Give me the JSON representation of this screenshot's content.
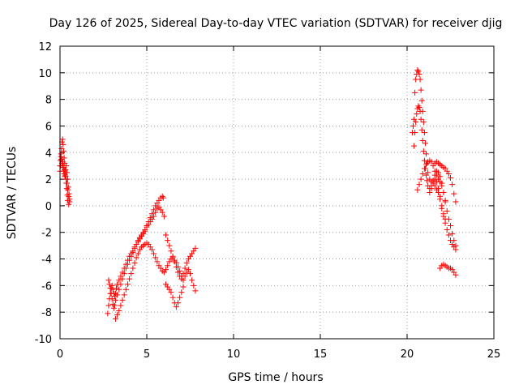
{
  "chart_data": {
    "type": "scatter",
    "title": "Day 126 of 2025, Sidereal Day-to-day VTEC variation (SDTVAR) for receiver djig",
    "xlabel": "GPS time / hours",
    "ylabel": "SDTVAR / TECUs",
    "xlim": [
      0,
      25
    ],
    "ylim": [
      -10,
      12
    ],
    "xticks": [
      "0",
      "5",
      "10",
      "15",
      "20",
      "25"
    ],
    "yticks": [
      "-10",
      "-8",
      "-6",
      "-4",
      "-2",
      "0",
      "2",
      "4",
      "6",
      "8",
      "10",
      "12"
    ],
    "grid": true,
    "marker": "+",
    "color": "#ff0000",
    "series": [
      {
        "values": [
          [
            0.0,
            3.0
          ],
          [
            0.03,
            3.4
          ],
          [
            0.06,
            3.9
          ],
          [
            0.09,
            4.3
          ],
          [
            0.12,
            4.8
          ],
          [
            0.15,
            5.0
          ],
          [
            0.18,
            4.6
          ],
          [
            0.21,
            4.1
          ],
          [
            0.24,
            3.6
          ],
          [
            0.27,
            3.2
          ],
          [
            0.3,
            2.7
          ],
          [
            0.33,
            2.2
          ],
          [
            0.36,
            1.7
          ],
          [
            0.39,
            1.3
          ],
          [
            0.42,
            0.8
          ],
          [
            0.45,
            0.4
          ],
          [
            0.5,
            0.1
          ],
          [
            0.0,
            2.6
          ],
          [
            0.04,
            3.0
          ],
          [
            0.08,
            3.5
          ],
          [
            0.12,
            3.2
          ],
          [
            0.16,
            2.9
          ],
          [
            0.2,
            2.6
          ],
          [
            0.24,
            2.4
          ],
          [
            0.28,
            2.2
          ],
          [
            0.32,
            2.7
          ],
          [
            0.36,
            3.0
          ],
          [
            0.4,
            2.5
          ],
          [
            0.44,
            2.0
          ],
          [
            0.48,
            1.4
          ],
          [
            0.52,
            0.9
          ],
          [
            0.55,
            0.5
          ],
          [
            0.05,
            3.7
          ],
          [
            0.1,
            3.5
          ],
          [
            0.15,
            3.3
          ],
          [
            0.2,
            3.0
          ],
          [
            0.25,
            2.7
          ],
          [
            0.3,
            2.3
          ],
          [
            0.35,
            2.0
          ],
          [
            0.4,
            1.7
          ],
          [
            0.45,
            1.2
          ],
          [
            0.5,
            0.7
          ],
          [
            0.55,
            0.3
          ]
        ]
      },
      {
        "values": [
          [
            2.75,
            -8.1
          ],
          [
            2.8,
            -7.5
          ],
          [
            2.85,
            -7.0
          ],
          [
            2.9,
            -6.6
          ],
          [
            2.95,
            -6.2
          ],
          [
            3.0,
            -6.0
          ],
          [
            3.05,
            -6.3
          ],
          [
            3.1,
            -6.6
          ],
          [
            3.15,
            -6.8
          ],
          [
            3.2,
            -6.6
          ],
          [
            3.25,
            -6.2
          ],
          [
            3.3,
            -5.9
          ],
          [
            3.4,
            -5.6
          ],
          [
            3.5,
            -5.3
          ],
          [
            3.6,
            -5.0
          ],
          [
            3.7,
            -4.7
          ],
          [
            3.8,
            -4.4
          ],
          [
            3.9,
            -4.1
          ],
          [
            4.0,
            -3.8
          ],
          [
            4.1,
            -3.6
          ],
          [
            4.2,
            -3.4
          ],
          [
            4.3,
            -3.1
          ],
          [
            4.4,
            -2.9
          ],
          [
            4.5,
            -2.6
          ],
          [
            4.6,
            -2.4
          ],
          [
            4.7,
            -2.2
          ],
          [
            4.8,
            -2.0
          ],
          [
            4.9,
            -1.8
          ],
          [
            5.0,
            -1.5
          ],
          [
            5.1,
            -1.2
          ],
          [
            5.2,
            -0.9
          ],
          [
            5.3,
            -0.6
          ],
          [
            5.4,
            -0.3
          ],
          [
            5.5,
            0.0
          ],
          [
            5.6,
            0.2
          ],
          [
            5.7,
            0.4
          ],
          [
            5.8,
            0.6
          ],
          [
            5.9,
            0.7
          ],
          [
            5.95,
            0.6
          ],
          [
            2.8,
            -5.6
          ],
          [
            2.85,
            -5.9
          ],
          [
            2.9,
            -6.2
          ],
          [
            2.95,
            -6.6
          ],
          [
            3.0,
            -7.0
          ],
          [
            3.05,
            -7.4
          ],
          [
            3.1,
            -7.7
          ],
          [
            3.15,
            -7.5
          ],
          [
            3.2,
            -7.1
          ],
          [
            3.3,
            -6.7
          ],
          [
            3.4,
            -6.3
          ],
          [
            3.5,
            -5.9
          ],
          [
            3.6,
            -5.5
          ],
          [
            3.7,
            -5.1
          ],
          [
            3.8,
            -4.7
          ],
          [
            3.9,
            -4.4
          ],
          [
            4.0,
            -4.1
          ],
          [
            4.1,
            -3.8
          ],
          [
            4.2,
            -3.5
          ],
          [
            4.3,
            -3.2
          ],
          [
            4.4,
            -2.9
          ],
          [
            4.5,
            -2.7
          ],
          [
            4.6,
            -2.5
          ],
          [
            4.7,
            -2.3
          ],
          [
            4.8,
            -2.1
          ],
          [
            4.9,
            -1.9
          ],
          [
            5.0,
            -1.6
          ],
          [
            5.1,
            -1.4
          ],
          [
            5.2,
            -1.2
          ],
          [
            5.3,
            -1.0
          ],
          [
            5.4,
            -0.8
          ],
          [
            5.5,
            -0.5
          ],
          [
            5.6,
            -0.2
          ],
          [
            5.7,
            -0.1
          ],
          [
            5.8,
            -0.3
          ],
          [
            5.9,
            -0.5
          ],
          [
            6.0,
            -0.8
          ],
          [
            3.2,
            -8.5
          ],
          [
            3.3,
            -8.2
          ],
          [
            3.4,
            -7.9
          ],
          [
            3.5,
            -7.5
          ],
          [
            3.6,
            -7.1
          ],
          [
            3.7,
            -6.7
          ],
          [
            3.8,
            -6.3
          ],
          [
            3.9,
            -5.9
          ],
          [
            4.0,
            -5.5
          ],
          [
            4.1,
            -5.1
          ],
          [
            4.2,
            -4.7
          ],
          [
            4.3,
            -4.3
          ],
          [
            4.4,
            -3.9
          ],
          [
            4.5,
            -3.6
          ],
          [
            4.6,
            -3.3
          ],
          [
            4.7,
            -3.1
          ],
          [
            4.8,
            -3.0
          ],
          [
            4.9,
            -2.9
          ],
          [
            5.0,
            -2.8
          ],
          [
            5.1,
            -2.9
          ],
          [
            5.2,
            -3.1
          ],
          [
            5.3,
            -3.3
          ],
          [
            5.4,
            -3.6
          ],
          [
            5.5,
            -3.9
          ],
          [
            5.6,
            -4.2
          ],
          [
            5.7,
            -4.5
          ],
          [
            5.8,
            -4.7
          ],
          [
            5.9,
            -4.9
          ],
          [
            6.0,
            -5.0
          ],
          [
            6.1,
            -4.8
          ],
          [
            6.2,
            -4.5
          ],
          [
            6.3,
            -4.2
          ],
          [
            6.4,
            -4.0
          ],
          [
            6.5,
            -3.9
          ],
          [
            6.6,
            -4.2
          ],
          [
            6.7,
            -4.6
          ],
          [
            6.8,
            -5.0
          ],
          [
            6.9,
            -5.3
          ],
          [
            7.0,
            -5.5
          ],
          [
            7.1,
            -5.1
          ],
          [
            7.2,
            -4.7
          ],
          [
            7.3,
            -4.3
          ],
          [
            7.4,
            -4.0
          ],
          [
            7.5,
            -3.8
          ],
          [
            7.6,
            -3.6
          ],
          [
            7.7,
            -3.4
          ],
          [
            7.8,
            -3.2
          ],
          [
            6.1,
            -2.2
          ],
          [
            6.2,
            -2.6
          ],
          [
            6.3,
            -3.0
          ],
          [
            6.4,
            -3.4
          ],
          [
            6.5,
            -3.8
          ],
          [
            6.6,
            -4.1
          ],
          [
            6.7,
            -4.3
          ],
          [
            6.8,
            -4.6
          ],
          [
            6.9,
            -4.9
          ],
          [
            7.0,
            -5.3
          ],
          [
            7.1,
            -5.6
          ],
          [
            7.2,
            -5.3
          ],
          [
            7.3,
            -5.0
          ],
          [
            7.4,
            -4.8
          ],
          [
            7.5,
            -5.1
          ],
          [
            7.6,
            -5.6
          ],
          [
            7.7,
            -6.0
          ],
          [
            7.8,
            -6.4
          ],
          [
            6.1,
            -5.9
          ],
          [
            6.2,
            -6.1
          ],
          [
            6.3,
            -6.3
          ],
          [
            6.4,
            -6.5
          ],
          [
            6.5,
            -6.9
          ],
          [
            6.6,
            -7.3
          ],
          [
            6.7,
            -7.6
          ],
          [
            6.8,
            -7.3
          ],
          [
            6.9,
            -6.9
          ],
          [
            7.0,
            -6.5
          ],
          [
            7.1,
            -6.1
          ]
        ]
      },
      {
        "values": [
          [
            20.3,
            5.5
          ],
          [
            20.35,
            6.0
          ],
          [
            20.4,
            6.5
          ],
          [
            20.45,
            8.5
          ],
          [
            20.5,
            9.5
          ],
          [
            20.55,
            9.9
          ],
          [
            20.6,
            10.2
          ],
          [
            20.65,
            10.1
          ],
          [
            20.7,
            9.9
          ],
          [
            20.75,
            9.5
          ],
          [
            20.8,
            8.7
          ],
          [
            20.85,
            7.9
          ],
          [
            20.9,
            7.1
          ],
          [
            20.95,
            6.3
          ],
          [
            21.0,
            5.5
          ],
          [
            21.05,
            4.7
          ],
          [
            21.1,
            3.9
          ],
          [
            21.15,
            3.2
          ],
          [
            21.2,
            2.5
          ],
          [
            21.3,
            2.0
          ],
          [
            21.4,
            1.8
          ],
          [
            21.5,
            1.7
          ],
          [
            21.6,
            1.5
          ],
          [
            21.7,
            1.2
          ],
          [
            21.8,
            1.0
          ],
          [
            21.9,
            0.5
          ],
          [
            22.0,
            -0.2
          ],
          [
            22.1,
            -0.8
          ],
          [
            22.2,
            -1.3
          ],
          [
            22.3,
            -1.8
          ],
          [
            22.4,
            -2.2
          ],
          [
            22.5,
            -2.6
          ],
          [
            22.6,
            -2.9
          ],
          [
            22.7,
            -3.1
          ],
          [
            22.8,
            -3.3
          ],
          [
            20.4,
            4.5
          ],
          [
            20.45,
            5.5
          ],
          [
            20.5,
            6.3
          ],
          [
            20.55,
            6.9
          ],
          [
            20.6,
            7.3
          ],
          [
            20.65,
            7.5
          ],
          [
            20.7,
            7.4
          ],
          [
            20.75,
            7.1
          ],
          [
            20.8,
            6.5
          ],
          [
            20.85,
            5.7
          ],
          [
            20.9,
            4.9
          ],
          [
            20.95,
            4.1
          ],
          [
            21.0,
            3.4
          ],
          [
            21.05,
            2.8
          ],
          [
            21.1,
            2.3
          ],
          [
            21.15,
            1.9
          ],
          [
            21.2,
            1.5
          ],
          [
            21.3,
            1.3
          ],
          [
            21.4,
            1.5
          ],
          [
            21.5,
            1.9
          ],
          [
            21.6,
            2.3
          ],
          [
            21.7,
            2.6
          ],
          [
            21.8,
            2.5
          ],
          [
            21.9,
            2.2
          ],
          [
            22.0,
            1.7
          ],
          [
            22.1,
            1.0
          ],
          [
            22.2,
            0.3
          ],
          [
            22.3,
            -0.4
          ],
          [
            22.4,
            -1.0
          ],
          [
            22.5,
            -1.5
          ],
          [
            22.6,
            -2.1
          ],
          [
            22.7,
            -2.6
          ],
          [
            22.8,
            -3.0
          ],
          [
            20.6,
            1.2
          ],
          [
            20.7,
            1.6
          ],
          [
            20.8,
            2.0
          ],
          [
            20.9,
            2.4
          ],
          [
            21.0,
            2.8
          ],
          [
            21.1,
            3.1
          ],
          [
            21.2,
            3.3
          ],
          [
            21.3,
            3.4
          ],
          [
            21.4,
            3.3
          ],
          [
            21.5,
            3.0
          ],
          [
            21.6,
            2.6
          ],
          [
            21.7,
            2.3
          ],
          [
            21.8,
            2.0
          ],
          [
            21.9,
            1.8
          ],
          [
            22.0,
            1.5
          ],
          [
            22.1,
            1.0
          ],
          [
            22.2,
            0.4
          ],
          [
            21.3,
            1.0
          ],
          [
            21.4,
            1.3
          ],
          [
            21.5,
            1.7
          ],
          [
            21.6,
            2.0
          ],
          [
            21.7,
            1.8
          ],
          [
            21.8,
            1.3
          ],
          [
            21.9,
            0.7
          ],
          [
            22.0,
            0.0
          ],
          [
            22.1,
            -0.6
          ],
          [
            22.2,
            -1.0
          ],
          [
            21.6,
            3.2
          ],
          [
            21.7,
            3.3
          ],
          [
            21.8,
            3.2
          ],
          [
            21.9,
            3.1
          ],
          [
            22.0,
            3.0
          ],
          [
            22.1,
            2.9
          ],
          [
            22.2,
            2.8
          ],
          [
            22.3,
            2.6
          ],
          [
            22.4,
            2.4
          ],
          [
            22.5,
            2.1
          ],
          [
            22.6,
            1.6
          ],
          [
            22.7,
            0.9
          ],
          [
            22.8,
            0.3
          ],
          [
            21.9,
            -4.7
          ],
          [
            22.0,
            -4.5
          ],
          [
            22.1,
            -4.4
          ],
          [
            22.2,
            -4.5
          ],
          [
            22.3,
            -4.6
          ],
          [
            22.4,
            -4.7
          ],
          [
            22.5,
            -4.7
          ],
          [
            22.6,
            -4.8
          ],
          [
            22.7,
            -5.0
          ],
          [
            22.8,
            -5.2
          ]
        ]
      }
    ]
  }
}
